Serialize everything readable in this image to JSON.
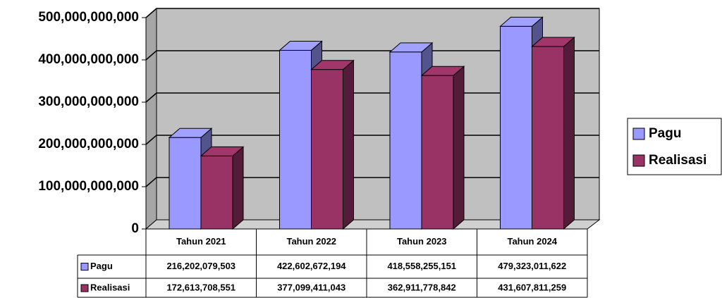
{
  "chart_data": {
    "type": "bar",
    "categories": [
      "Tahun 2021",
      "Tahun 2022",
      "Tahun 2023",
      "Tahun 2024"
    ],
    "series": [
      {
        "name": "Pagu",
        "color": "#9999ff",
        "values": [
          216202079503,
          422602672194,
          418558255151,
          479323011622
        ],
        "value_labels": [
          "216,202,079,503",
          "422,602,672,194",
          "418,558,255,151",
          "479,323,011,622"
        ]
      },
      {
        "name": "Realisasi",
        "color": "#993366",
        "values": [
          172613708551,
          377099411043,
          362911778842,
          431607811259
        ],
        "value_labels": [
          "172,613,708,551",
          "377,099,411,043",
          "362,911,778,842",
          "431,607,811,259"
        ]
      }
    ],
    "ylim": [
      0,
      500000000000
    ],
    "yticks": [
      0,
      {
        "value": 100000000000,
        "label": "100,000,000,000"
      },
      {
        "value": 200000000000,
        "label": "200,000,000,000"
      },
      {
        "value": 300000000000,
        "label": "300,000,000,000"
      },
      {
        "value": 400000000000,
        "label": "400,000,000,000"
      },
      {
        "value": 500000000000,
        "label": "500,000,000,000"
      }
    ],
    "grid": true,
    "legend": "right"
  }
}
